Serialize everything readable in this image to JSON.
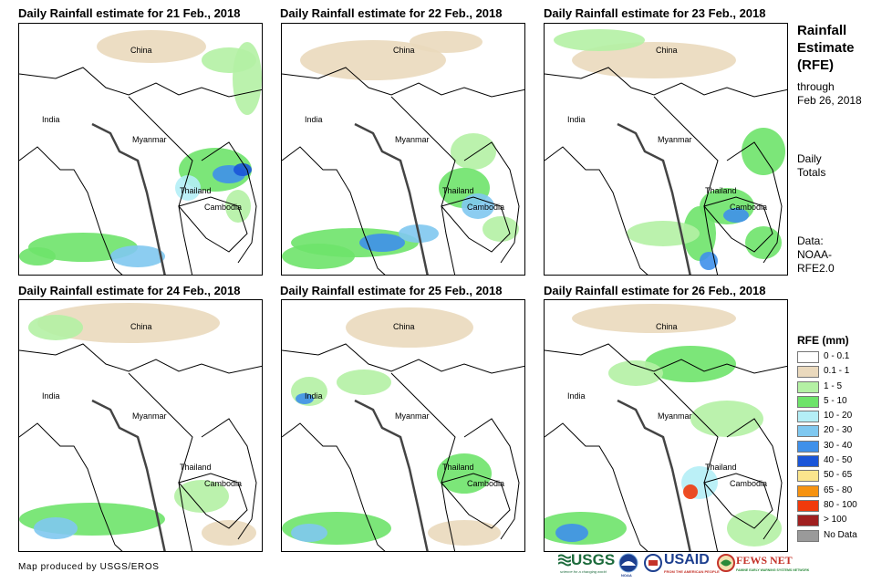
{
  "panels": [
    {
      "title": "Daily Rainfall estimate for 21 Feb., 2018"
    },
    {
      "title": "Daily Rainfall estimate for 22 Feb., 2018"
    },
    {
      "title": "Daily Rainfall estimate for 23 Feb., 2018"
    },
    {
      "title": "Daily Rainfall estimate for 24 Feb., 2018"
    },
    {
      "title": "Daily Rainfall estimate for 25 Feb., 2018"
    },
    {
      "title": "Daily Rainfall estimate for 26 Feb., 2018"
    }
  ],
  "countries": {
    "china": "China",
    "india": "India",
    "myanmar": "Myanmar",
    "thailand": "Thailand",
    "cambodia": "Cambodia"
  },
  "sidebar": {
    "title_lines": [
      "Rainfall",
      "Estimate",
      "(RFE)"
    ],
    "through_lines": [
      "through",
      "Feb 26, 2018"
    ],
    "totals_lines": [
      "Daily",
      "Totals"
    ],
    "data_lines": [
      "Data:",
      "NOAA-",
      "RFE2.0"
    ]
  },
  "legend": {
    "title": "RFE (mm)",
    "items": [
      {
        "label": "0 - 0.1",
        "color": "#ffffff"
      },
      {
        "label": "0.1 - 1",
        "color": "#ead9bd"
      },
      {
        "label": "1 - 5",
        "color": "#b4f1a4"
      },
      {
        "label": "5 - 10",
        "color": "#6ee36a"
      },
      {
        "label": "10 - 20",
        "color": "#b4eef6"
      },
      {
        "label": "20 - 30",
        "color": "#7fc8f0"
      },
      {
        "label": "30 - 40",
        "color": "#3f90ea"
      },
      {
        "label": "40 - 50",
        "color": "#1a55d8"
      },
      {
        "label": "50 - 65",
        "color": "#fbe58d"
      },
      {
        "label": "65 - 80",
        "color": "#f6920f"
      },
      {
        "label": "80 - 100",
        "color": "#f03a0c"
      },
      {
        "label": "> 100",
        "color": "#a02020"
      },
      {
        "label": "No Data",
        "color": "#9a9a9a"
      }
    ]
  },
  "credit": "Map produced by USGS/EROS",
  "logos": {
    "usgs": "USGS",
    "usgs_tagline": "science for a changing world",
    "noaa": "NOAA",
    "usaid": "USAID",
    "usaid_tagline": "FROM THE AMERICAN PEOPLE",
    "fewsnet": "FEWS NET",
    "fewsnet_tagline": "FAMINE EARLY WARNING SYSTEMS NETWORK"
  },
  "colors": {
    "brand_green": "#2a8a3a",
    "usgs_green": "#1c6b3c",
    "usaid_blue": "#1d3f8f",
    "fews_red": "#c4332a"
  }
}
